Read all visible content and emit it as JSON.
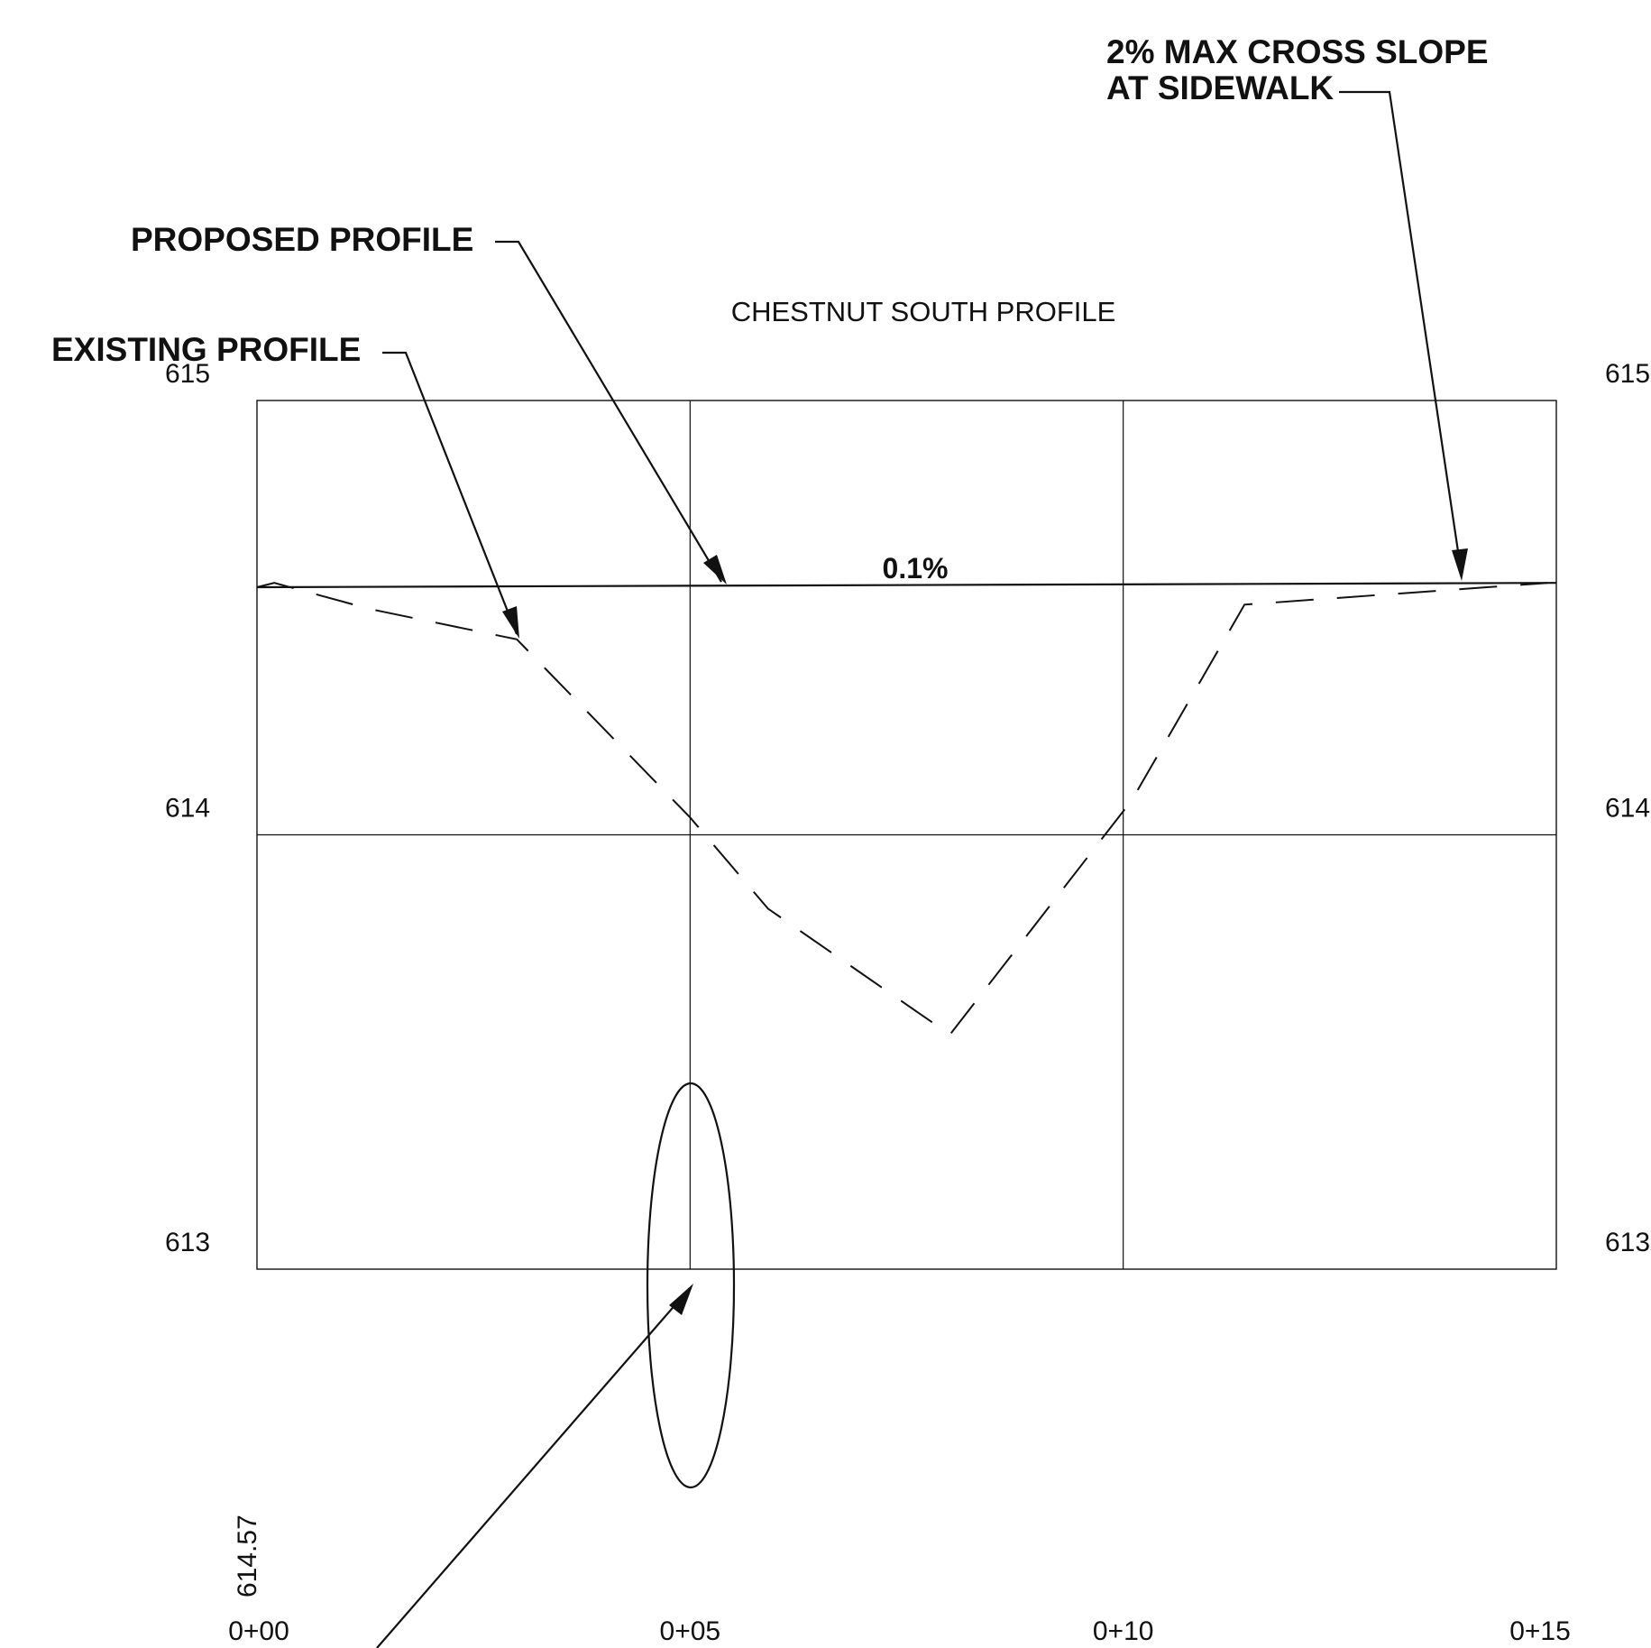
{
  "chart_data": {
    "type": "line",
    "title": "CHESTNUT SOUTH PROFILE",
    "xlabel": "",
    "ylabel": "",
    "xlim": [
      0,
      15
    ],
    "ylim": [
      613,
      615
    ],
    "grid": true,
    "x_ticks": [
      {
        "value": 0,
        "label": "0+00"
      },
      {
        "value": 5,
        "label": "0+05"
      },
      {
        "value": 10,
        "label": "0+10"
      },
      {
        "value": 15,
        "label": "0+15"
      }
    ],
    "y_ticks": [
      {
        "value": 615,
        "label": "615"
      },
      {
        "value": 614,
        "label": "614"
      },
      {
        "value": 613,
        "label": "613"
      }
    ],
    "series": [
      {
        "name": "PROPOSED PROFILE",
        "style": "solid",
        "points": [
          [
            0,
            614.57
          ],
          [
            15,
            614.58
          ]
        ]
      },
      {
        "name": "EXISTING PROFILE",
        "style": "dashed",
        "points": [
          [
            0,
            614.57
          ],
          [
            0.2,
            614.58
          ],
          [
            1.3,
            614.52
          ],
          [
            3.0,
            614.45
          ],
          [
            5.0,
            614.04
          ],
          [
            5.9,
            613.83
          ],
          [
            8.0,
            613.54
          ],
          [
            10.1,
            614.08
          ],
          [
            11.4,
            614.53
          ],
          [
            14.2,
            614.57
          ],
          [
            14.9,
            614.58
          ]
        ]
      }
    ],
    "annotations": [
      {
        "id": "max-slope",
        "lines": [
          "2% MAX CROSS SLOPE",
          "AT SIDEWALK"
        ],
        "target": [
          13.95,
          614.57
        ]
      },
      {
        "id": "proposed",
        "lines": [
          "PROPOSED PROFILE"
        ],
        "target": [
          5.4,
          614.57
        ]
      },
      {
        "id": "existing",
        "lines": [
          "EXISTING PROFILE"
        ],
        "target": [
          3.05,
          614.46
        ]
      },
      {
        "id": "grade",
        "lines": [
          "0.1%"
        ]
      },
      {
        "id": "station-elev",
        "lines": [
          "614.57"
        ],
        "target": [
          5.0,
          612.97
        ]
      }
    ],
    "accent_color": "#111111"
  }
}
